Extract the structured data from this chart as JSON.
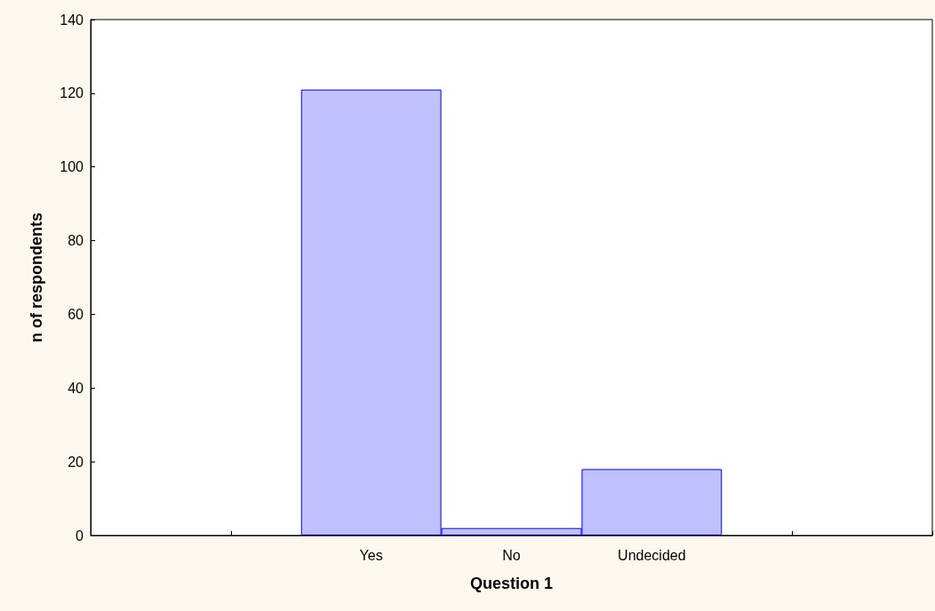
{
  "chart_data": {
    "type": "bar",
    "xlabel": "Question 1",
    "ylabel": "n of respondents",
    "categories": [
      null,
      null,
      "Yes",
      "No",
      "Undecided",
      null,
      null
    ],
    "values": [
      null,
      null,
      121,
      2,
      18,
      null,
      null
    ],
    "color": "#c0c0ff",
    "ylim": [
      0,
      140
    ],
    "yticks": [
      0,
      20,
      40,
      60,
      80,
      100,
      120,
      140
    ],
    "grid": false
  }
}
